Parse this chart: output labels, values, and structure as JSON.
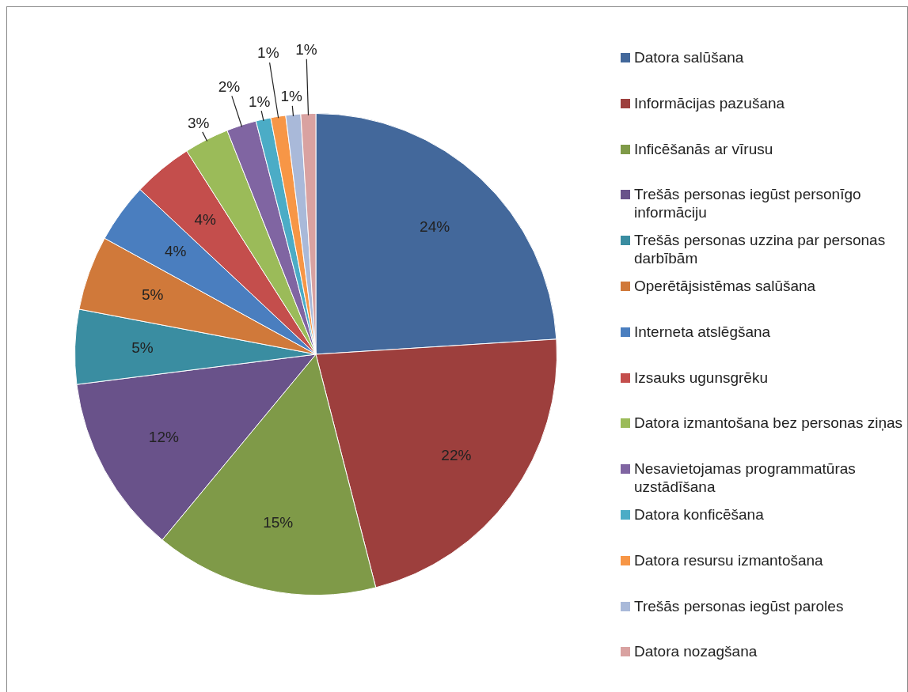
{
  "chart_data": {
    "type": "pie",
    "legend": "right",
    "categories": [
      "Datora salūšana",
      "Informācijas pazušana",
      "Inficēšanās ar vīrusu",
      "Trešās personas iegūst personīgo informāciju",
      "Trešās personas uzzina par personas darbībām",
      "Operētājsistēmas salūšana",
      "Interneta atslēgšana",
      "Izsauks ugunsgrēku",
      "Datora izmantošana bez personas ziņas",
      "Nesavietojamas programmatūras uzstādīšana",
      "Datora konficēšana",
      "Datora resursu izmantošana",
      "Trešās personas iegūst paroles",
      "Datora nozagšana"
    ],
    "values": [
      24,
      22,
      15,
      12,
      5,
      5,
      4,
      4,
      3,
      2,
      1,
      1,
      1,
      1
    ],
    "value_labels": [
      "24%",
      "22%",
      "15%",
      "12%",
      "5%",
      "5%",
      "4%",
      "4%",
      "3%",
      "2%",
      "1%",
      "1%",
      "1%",
      "1%"
    ],
    "colors": [
      "#43689b",
      "#9d3f3d",
      "#7f9a48",
      "#69528a",
      "#3a8da1",
      "#d0793a",
      "#4a7ebf",
      "#c44e4c",
      "#9bbb59",
      "#8065a2",
      "#4bacc6",
      "#f79646",
      "#a9b9d9",
      "#d9a2a1"
    ]
  }
}
